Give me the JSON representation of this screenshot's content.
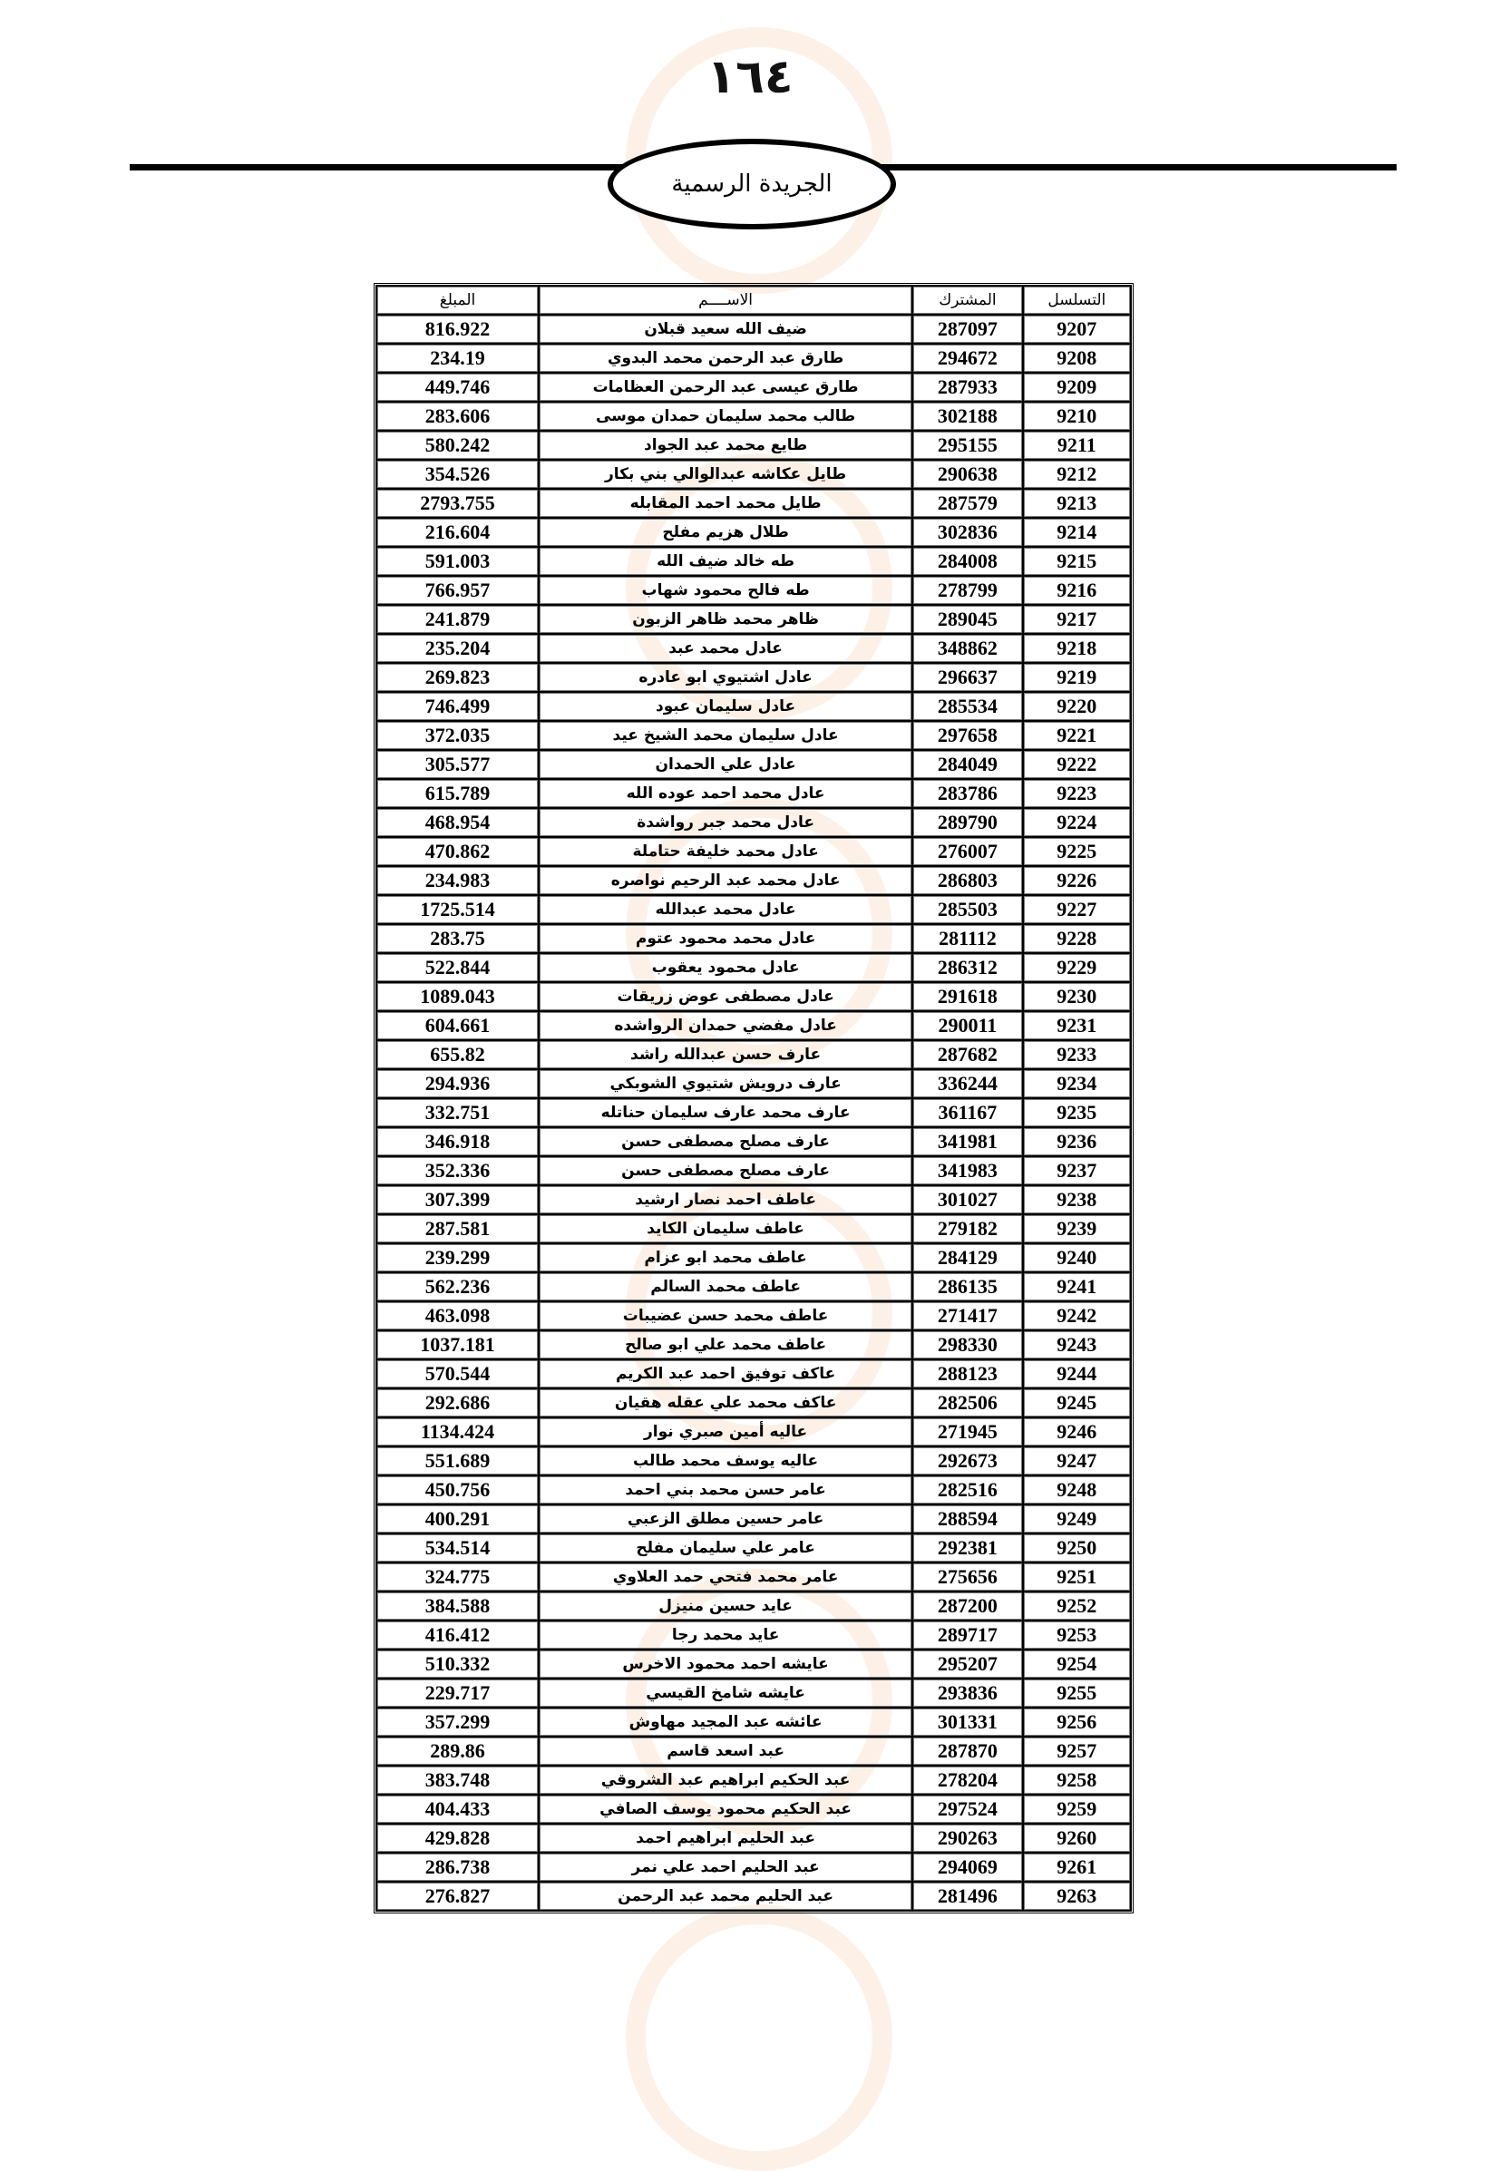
{
  "page_number": "١٦٤",
  "header_title": "الجريدة الرسمية",
  "table": {
    "columns": [
      "التسلسل",
      "المشترك",
      "الاســــم",
      "المبلغ"
    ],
    "rows": [
      [
        "9207",
        "287097",
        "ضيف الله سعيد قبلان",
        "816.922"
      ],
      [
        "9208",
        "294672",
        "طارق عبد الرحمن محمد البدوي",
        "234.19"
      ],
      [
        "9209",
        "287933",
        "طارق عيسى عبد الرحمن العظامات",
        "449.746"
      ],
      [
        "9210",
        "302188",
        "طالب محمد سليمان حمدان موسى",
        "283.606"
      ],
      [
        "9211",
        "295155",
        "طايع محمد عبد الجواد",
        "580.242"
      ],
      [
        "9212",
        "290638",
        "طايل عكاشه عبدالوالي بني بكار",
        "354.526"
      ],
      [
        "9213",
        "287579",
        "طايل محمد احمد المقابله",
        "2793.755"
      ],
      [
        "9214",
        "302836",
        "طلال هزيم مفلح",
        "216.604"
      ],
      [
        "9215",
        "284008",
        "طه خالد ضيف الله",
        "591.003"
      ],
      [
        "9216",
        "278799",
        "طه فالح محمود شهاب",
        "766.957"
      ],
      [
        "9217",
        "289045",
        "ظاهر محمد ظاهر الزبون",
        "241.879"
      ],
      [
        "9218",
        "348862",
        "عادل محمد عبد",
        "235.204"
      ],
      [
        "9219",
        "296637",
        "عادل اشتيوي ابو عادره",
        "269.823"
      ],
      [
        "9220",
        "285534",
        "عادل سليمان عبود",
        "746.499"
      ],
      [
        "9221",
        "297658",
        "عادل سليمان محمد الشيخ عيد",
        "372.035"
      ],
      [
        "9222",
        "284049",
        "عادل علي الحمدان",
        "305.577"
      ],
      [
        "9223",
        "283786",
        "عادل محمد احمد عوده الله",
        "615.789"
      ],
      [
        "9224",
        "289790",
        "عادل محمد جبر رواشدة",
        "468.954"
      ],
      [
        "9225",
        "276007",
        "عادل محمد خليفة حتاملة",
        "470.862"
      ],
      [
        "9226",
        "286803",
        "عادل محمد عبد الرحيم نواصره",
        "234.983"
      ],
      [
        "9227",
        "285503",
        "عادل محمد عبدالله",
        "1725.514"
      ],
      [
        "9228",
        "281112",
        "عادل محمد محمود عتوم",
        "283.75"
      ],
      [
        "9229",
        "286312",
        "عادل محمود يعقوب",
        "522.844"
      ],
      [
        "9230",
        "291618",
        "عادل مصطفى عوض زريقات",
        "1089.043"
      ],
      [
        "9231",
        "290011",
        "عادل مفضي  حمدان الرواشده",
        "604.661"
      ],
      [
        "9233",
        "287682",
        "عارف حسن عبدالله راشد",
        "655.82"
      ],
      [
        "9234",
        "336244",
        "عارف درويش شتيوي الشوبكي",
        "294.936"
      ],
      [
        "9235",
        "361167",
        "عارف محمد عارف سليمان حناتله",
        "332.751"
      ],
      [
        "9236",
        "341981",
        "عارف مصلح مصطفى حسن",
        "346.918"
      ],
      [
        "9237",
        "341983",
        "عارف مصلح مصطفى حسن",
        "352.336"
      ],
      [
        "9238",
        "301027",
        "عاطف احمد نصار ارشيد",
        "307.399"
      ],
      [
        "9239",
        "279182",
        "عاطف سليمان الكايد",
        "287.581"
      ],
      [
        "9240",
        "284129",
        "عاطف محمد ابو عزام",
        "239.299"
      ],
      [
        "9241",
        "286135",
        "عاطف محمد السالم",
        "562.236"
      ],
      [
        "9242",
        "271417",
        "عاطف محمد حسن عضيبات",
        "463.098"
      ],
      [
        "9243",
        "298330",
        "عاطف محمد علي ابو صالح",
        "1037.181"
      ],
      [
        "9244",
        "288123",
        "عاكف توفيق احمد عبد الكريم",
        "570.544"
      ],
      [
        "9245",
        "282506",
        "عاكف محمد علي عقله هقيان",
        "292.686"
      ],
      [
        "9246",
        "271945",
        "عاليه أمين صبري نوار",
        "1134.424"
      ],
      [
        "9247",
        "292673",
        "عاليه يوسف محمد طالب",
        "551.689"
      ],
      [
        "9248",
        "282516",
        "عامر حسن محمد بني احمد",
        "450.756"
      ],
      [
        "9249",
        "288594",
        "عامر حسين مطلق الزعبي",
        "400.291"
      ],
      [
        "9250",
        "292381",
        "عامر علي سليمان مفلح",
        "534.514"
      ],
      [
        "9251",
        "275656",
        "عامر محمد فتحي حمد العلاوي",
        "324.775"
      ],
      [
        "9252",
        "287200",
        "عايد حسين منيزل",
        "384.588"
      ],
      [
        "9253",
        "289717",
        "عايد محمد رجا",
        "416.412"
      ],
      [
        "9254",
        "295207",
        "عايشه احمد محمود الاخرس",
        "510.332"
      ],
      [
        "9255",
        "293836",
        "عايشه شامخ القيسي",
        "229.717"
      ],
      [
        "9256",
        "301331",
        "عائشه عبد المجيد مهاوش",
        "357.299"
      ],
      [
        "9257",
        "287870",
        "عبد اسعد قاسم",
        "289.86"
      ],
      [
        "9258",
        "278204",
        "عبد الحكيم ابراهيم عبد الشروقي",
        "383.748"
      ],
      [
        "9259",
        "297524",
        "عبد الحكيم محمود يوسف الصافي",
        "404.433"
      ],
      [
        "9260",
        "290263",
        "عبد الحليم ابراهيم احمد",
        "429.828"
      ],
      [
        "9261",
        "294069",
        "عبد الحليم احمد علي نمر",
        "286.738"
      ],
      [
        "9263",
        "281496",
        "عبد الحليم محمد عبد الرحمن",
        "276.827"
      ]
    ]
  }
}
